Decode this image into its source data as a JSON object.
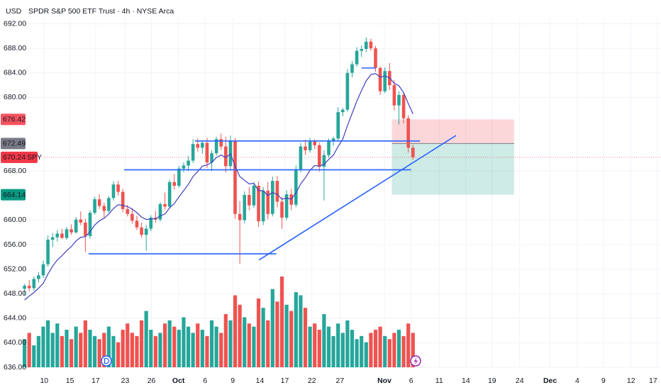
{
  "chart_data": {
    "type": "candlestick",
    "currency": "USD",
    "title": "SPDR S&P 500 ETF Trust · 4h · NYSE Arca",
    "up_color": "#26a69a",
    "down_color": "#ef5350",
    "ma_color": "#3f3fbf",
    "drawing_color": "#2962ff",
    "grid": true,
    "ylim": [
      636,
      692
    ],
    "yticks": [
      {
        "value": 636,
        "label": "636.00"
      },
      {
        "value": 640,
        "label": "640.00"
      },
      {
        "value": 644,
        "label": "644.00"
      },
      {
        "value": 648,
        "label": "648.00"
      },
      {
        "value": 652,
        "label": "652.00"
      },
      {
        "value": 656,
        "label": "656.00"
      },
      {
        "value": 660,
        "label": "660.00"
      },
      {
        "value": 668,
        "label": "668.00"
      },
      {
        "value": 680,
        "label": "680.00"
      },
      {
        "value": 684,
        "label": "684.00"
      },
      {
        "value": 688,
        "label": "688.00"
      },
      {
        "value": 692,
        "label": "692.00"
      }
    ],
    "xlim": [
      -1,
      136
    ],
    "xticks": [
      {
        "value": 4.2,
        "label": "10"
      },
      {
        "value": 9.7,
        "label": "15"
      },
      {
        "value": 15.2,
        "label": "17"
      },
      {
        "value": 21.5,
        "label": "23"
      },
      {
        "value": 27.1,
        "label": "26"
      },
      {
        "value": 32.9,
        "label": "Oct"
      },
      {
        "value": 38.6,
        "label": "6"
      },
      {
        "value": 44.5,
        "label": "9"
      },
      {
        "value": 50.3,
        "label": "14"
      },
      {
        "value": 55.6,
        "label": "17"
      },
      {
        "value": 61.4,
        "label": "22"
      },
      {
        "value": 67.4,
        "label": "27"
      },
      {
        "value": 76.9,
        "label": "Nov"
      },
      {
        "value": 82.6,
        "label": "6"
      },
      {
        "value": 88.6,
        "label": "11"
      },
      {
        "value": 94.3,
        "label": "14"
      },
      {
        "value": 99.9,
        "label": "19"
      },
      {
        "value": 105.8,
        "label": "24"
      },
      {
        "value": 112.3,
        "label": "Dec"
      },
      {
        "value": 118.1,
        "label": "4"
      },
      {
        "value": 123.7,
        "label": "9"
      },
      {
        "value": 129.6,
        "label": "12"
      },
      {
        "value": 135.2,
        "label": "17"
      }
    ],
    "candles": [
      [
        648.8,
        649.6,
        647.8,
        649.3
      ],
      [
        649.3,
        650.2,
        648.4,
        648.9
      ],
      [
        648.9,
        650.8,
        648.5,
        650.4
      ],
      [
        650.4,
        651.5,
        649.8,
        651.0
      ],
      [
        651.0,
        653.4,
        650.6,
        652.8
      ],
      [
        652.8,
        657.5,
        652.4,
        656.8
      ],
      [
        656.8,
        657.9,
        655.6,
        657.2
      ],
      [
        657.2,
        658.4,
        656.5,
        657.8
      ],
      [
        657.8,
        658.6,
        656.9,
        657.1
      ],
      [
        657.1,
        658.9,
        656.8,
        658.5
      ],
      [
        658.5,
        659.3,
        657.6,
        658.0
      ],
      [
        658.0,
        660.5,
        657.8,
        660.1
      ],
      [
        660.1,
        661.4,
        659.2,
        659.6
      ],
      [
        659.6,
        660.2,
        654.8,
        657.4
      ],
      [
        657.4,
        661.6,
        657.0,
        661.2
      ],
      [
        661.2,
        663.8,
        660.9,
        663.4
      ],
      [
        663.4,
        664.2,
        661.8,
        662.3
      ],
      [
        662.3,
        662.8,
        660.4,
        661.5
      ],
      [
        661.5,
        663.9,
        661.2,
        663.6
      ],
      [
        663.6,
        666.3,
        663.2,
        665.8
      ],
      [
        665.8,
        666.4,
        664.0,
        664.6
      ],
      [
        664.6,
        665.1,
        661.3,
        661.8
      ],
      [
        661.8,
        662.5,
        660.6,
        661.0
      ],
      [
        661.0,
        661.9,
        659.4,
        659.9
      ],
      [
        659.9,
        660.7,
        658.4,
        658.8
      ],
      [
        658.8,
        659.6,
        657.1,
        657.6
      ],
      [
        657.6,
        659.2,
        655.0,
        658.6
      ],
      [
        658.6,
        660.8,
        658.2,
        660.4
      ],
      [
        660.4,
        661.5,
        659.6,
        660.1
      ],
      [
        660.1,
        662.9,
        659.8,
        662.6
      ],
      [
        662.6,
        664.5,
        661.7,
        662.2
      ],
      [
        662.2,
        666.6,
        661.9,
        666.2
      ],
      [
        666.2,
        667.5,
        665.0,
        665.6
      ],
      [
        665.6,
        668.8,
        665.3,
        668.4
      ],
      [
        668.4,
        669.4,
        667.8,
        668.9
      ],
      [
        668.9,
        670.4,
        668.0,
        669.7
      ],
      [
        669.7,
        673.2,
        669.3,
        672.4
      ],
      [
        672.4,
        673.3,
        671.2,
        671.8
      ],
      [
        671.8,
        672.9,
        670.8,
        672.6
      ],
      [
        672.6,
        673.4,
        668.5,
        669.4
      ],
      [
        669.4,
        671.4,
        668.0,
        670.9
      ],
      [
        670.9,
        673.6,
        670.5,
        673.2
      ],
      [
        673.2,
        674.1,
        671.4,
        672.0
      ],
      [
        672.0,
        673.6,
        667.8,
        668.8
      ],
      [
        668.8,
        673.8,
        668.2,
        672.9
      ],
      [
        672.9,
        673.4,
        660.2,
        661.0
      ],
      [
        661.0,
        663.1,
        652.9,
        660.0
      ],
      [
        660.0,
        664.7,
        659.5,
        664.1
      ],
      [
        664.1,
        665.4,
        661.6,
        662.4
      ],
      [
        662.4,
        666.2,
        662.0,
        665.6
      ],
      [
        665.6,
        666.3,
        658.9,
        659.8
      ],
      [
        659.8,
        665.4,
        659.2,
        664.8
      ],
      [
        664.8,
        666.2,
        660.1,
        661.0
      ],
      [
        661.0,
        667.1,
        660.6,
        666.4
      ],
      [
        666.4,
        667.2,
        662.1,
        663.0
      ],
      [
        663.0,
        663.8,
        658.6,
        660.4
      ],
      [
        660.4,
        664.9,
        660.0,
        664.2
      ],
      [
        664.2,
        665.1,
        661.6,
        662.5
      ],
      [
        662.5,
        668.9,
        662.1,
        668.3
      ],
      [
        668.3,
        672.6,
        667.8,
        672.0
      ],
      [
        672.0,
        673.1,
        670.6,
        671.4
      ],
      [
        671.4,
        673.4,
        671.0,
        672.8
      ],
      [
        672.8,
        673.2,
        671.6,
        672.2
      ],
      [
        672.2,
        672.6,
        667.9,
        668.7
      ],
      [
        668.7,
        671.4,
        663.2,
        670.6
      ],
      [
        670.6,
        673.3,
        670.2,
        672.9
      ],
      [
        672.9,
        673.6,
        672.1,
        673.3
      ],
      [
        673.3,
        678.4,
        673.0,
        677.6
      ],
      [
        677.6,
        678.3,
        676.9,
        678.0
      ],
      [
        678.0,
        684.6,
        677.7,
        684.0
      ],
      [
        684.0,
        685.9,
        683.3,
        685.4
      ],
      [
        685.4,
        688.2,
        685.0,
        687.6
      ],
      [
        687.6,
        688.5,
        686.6,
        687.9
      ],
      [
        687.9,
        689.8,
        687.4,
        689.1
      ],
      [
        689.1,
        689.6,
        687.6,
        688.0
      ],
      [
        688.0,
        688.4,
        684.2,
        684.8
      ],
      [
        684.8,
        685.1,
        680.4,
        681.0
      ],
      [
        681.0,
        684.9,
        680.7,
        684.3
      ],
      [
        684.3,
        685.6,
        681.2,
        682.0
      ],
      [
        682.0,
        682.8,
        677.9,
        678.7
      ],
      [
        678.7,
        681.0,
        675.6,
        680.4
      ],
      [
        680.4,
        680.8,
        675.8,
        676.6
      ],
      [
        676.6,
        677.1,
        671.0,
        671.8
      ],
      [
        671.8,
        672.3,
        669.8,
        670.24
      ]
    ],
    "volume": [
      18,
      22,
      14,
      20,
      26,
      30,
      22,
      28,
      20,
      24,
      18,
      26,
      22,
      30,
      24,
      20,
      18,
      22,
      26,
      20,
      16,
      24,
      28,
      22,
      20,
      30,
      36,
      24,
      20,
      22,
      28,
      30,
      26,
      24,
      32,
      26,
      22,
      28,
      24,
      20,
      30,
      26,
      22,
      34,
      30,
      46,
      40,
      32,
      28,
      26,
      44,
      38,
      30,
      50,
      42,
      58,
      40,
      36,
      48,
      46,
      38,
      26,
      28,
      24,
      34,
      26,
      20,
      28,
      22,
      30,
      24,
      18,
      20,
      16,
      22,
      24,
      26,
      20,
      18,
      22,
      24,
      20,
      28,
      22
    ],
    "ma": [
      647.0,
      647.6,
      648.2,
      648.9,
      649.7,
      651.2,
      652.5,
      653.5,
      654.2,
      655.0,
      655.7,
      656.6,
      657.2,
      657.3,
      658.1,
      659.2,
      659.9,
      660.3,
      661.0,
      661.9,
      662.5,
      662.4,
      662.2,
      661.8,
      661.2,
      660.5,
      660.1,
      660.2,
      660.2,
      660.7,
      661.0,
      662.0,
      662.7,
      663.8,
      664.8,
      665.8,
      667.1,
      667.9,
      668.8,
      669.0,
      669.4,
      670.2,
      670.6,
      670.2,
      670.8,
      668.8,
      667.1,
      666.5,
      665.9,
      666.0,
      664.8,
      664.8,
      664.0,
      664.5,
      664.2,
      663.4,
      663.6,
      663.4,
      664.4,
      665.9,
      666.9,
      668.1,
      668.9,
      668.8,
      669.1,
      669.9,
      670.6,
      672.0,
      673.2,
      675.4,
      677.4,
      679.4,
      681.1,
      682.7,
      683.7,
      683.9,
      683.3,
      683.5,
      683.2,
      682.3,
      681.9,
      680.8,
      679.0,
      677.3
    ],
    "trendlines": [
      {
        "x": [
          13.7,
          53.8
        ],
        "y": [
          654.5,
          654.5
        ]
      },
      {
        "x": [
          21.3,
          82.6
        ],
        "y": [
          668.2,
          668.2
        ]
      },
      {
        "x": [
          36.4,
          84.5
        ],
        "y": [
          672.9,
          672.9
        ]
      },
      {
        "x": [
          72.0,
          75.0
        ],
        "y": [
          684.8,
          684.8
        ]
      },
      {
        "x": [
          50.1,
          92.2
        ],
        "y": [
          653.5,
          673.8
        ]
      }
    ],
    "position": {
      "x": [
        78.5,
        104.6
      ],
      "stop": 676.42,
      "entry": 672.49,
      "target": 664.14
    },
    "last_price": 670.24,
    "badges": [
      {
        "value": 676.42,
        "label": "676.42",
        "color": "#f7525f"
      },
      {
        "value": 672.49,
        "label": "672.49",
        "color": "#787b86"
      },
      {
        "value": 670.24,
        "label": "670.24",
        "symbol": "SPY",
        "color": "#f23645"
      },
      {
        "value": 664.14,
        "label": "664.14",
        "color": "#089981"
      }
    ]
  }
}
